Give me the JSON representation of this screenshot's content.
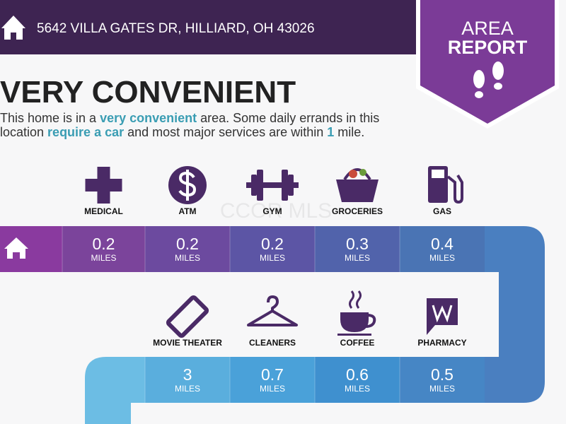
{
  "header": {
    "address": "5642 VILLA GATES DR, HILLIARD, OH 43026"
  },
  "badge": {
    "line1": "AREA",
    "line2": "REPORT"
  },
  "headline": "VERY CONVENIENT",
  "description": [
    "This home is in a ",
    "very convenient",
    " area. Some daily errands in this",
    "location ",
    "require a car",
    " and most major services are within ",
    "1",
    " mile."
  ],
  "watermark": "CCOR MLS",
  "unit": "MILES",
  "rows": [
    {
      "amenities": [
        {
          "label": "MEDICAL",
          "distance": 0.2
        },
        {
          "label": "ATM",
          "distance": 0.2
        },
        {
          "label": "GYM",
          "distance": 0.2
        },
        {
          "label": "GROCERIES",
          "distance": 0.3
        },
        {
          "label": "GAS",
          "distance": 0.4
        }
      ]
    },
    {
      "amenities": [
        {
          "label": "MOVIE THEATER",
          "distance": 3
        },
        {
          "label": "CLEANERS",
          "distance": 0.7
        },
        {
          "label": "COFFEE",
          "distance": 0.6
        },
        {
          "label": "PHARMACY",
          "distance": 0.5
        }
      ]
    }
  ]
}
